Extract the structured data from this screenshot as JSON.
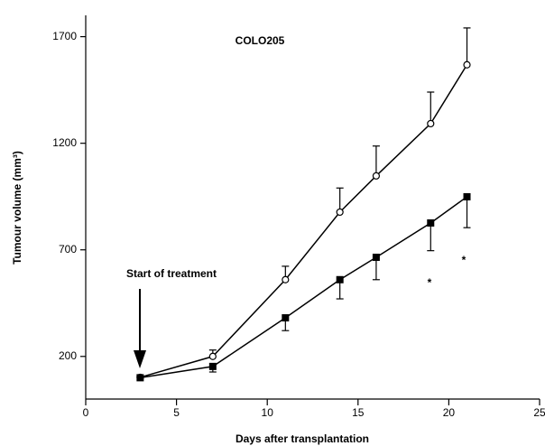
{
  "chart_data": {
    "type": "line",
    "title": "COLO205",
    "xlabel": "Days after transplantation",
    "ylabel": "Tumour volume (mm³)",
    "xlim": [
      0,
      25
    ],
    "xticks": [
      0,
      5,
      10,
      15,
      20,
      25
    ],
    "ylim": [
      0,
      1800
    ],
    "yticks": [
      200,
      700,
      1200,
      1700
    ],
    "annotations": [
      "Start of treatment",
      "*",
      "*"
    ],
    "series": [
      {
        "marker": "circle",
        "color": "#000",
        "error_direction": "up",
        "x": [
          3,
          7,
          11,
          14,
          16,
          19,
          21
        ],
        "values": [
          102,
          200,
          560,
          877,
          1047,
          1292,
          1568
        ],
        "errors": [
          0,
          30,
          63,
          113,
          140,
          148,
          173
        ]
      },
      {
        "marker": "square",
        "color": "#000",
        "error_direction": "down",
        "x": [
          3,
          7,
          11,
          14,
          16,
          19,
          21
        ],
        "values": [
          100,
          153,
          381,
          560,
          665,
          826,
          949
        ],
        "errors": [
          0,
          26,
          60,
          90,
          105,
          130,
          145
        ]
      }
    ]
  }
}
